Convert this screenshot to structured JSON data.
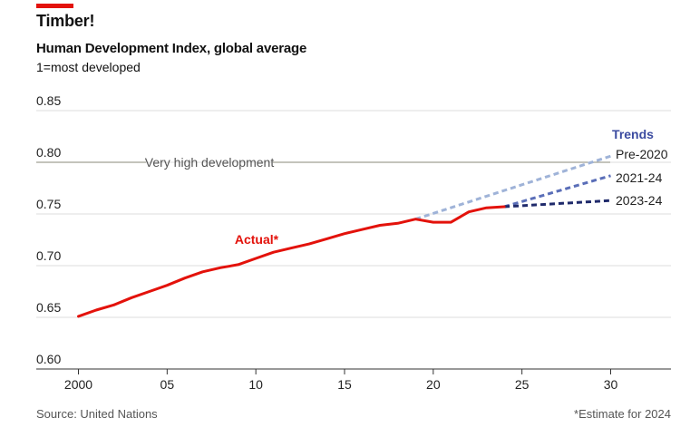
{
  "header": {
    "title": "Timber!",
    "subtitle": "Human Development Index, global average",
    "unit_note": "1=most developed"
  },
  "footer": {
    "source": "Source: United Nations",
    "footnote": "*Estimate for 2024"
  },
  "colors": {
    "brand_red": "#e3120b",
    "actual": "#e3120b",
    "pre2020": "#9fb3d8",
    "trend2021": "#5a6eb8",
    "trend2023": "#1f2a6b",
    "trends_label": "#3b4ba0",
    "reference": "#8a8a7a",
    "grid": "#dcdcdc"
  },
  "chart_data": {
    "type": "line",
    "title": "Human Development Index, global average",
    "xlabel": "",
    "ylabel": "1=most developed",
    "xlim": [
      1999,
      2032
    ],
    "ylim": [
      0.6,
      0.85
    ],
    "y_ticks": [
      0.85,
      0.8,
      0.75,
      0.7,
      0.65,
      0.6
    ],
    "y_tick_labels": [
      "0.85",
      "0.80",
      "0.75",
      "0.70",
      "0.65",
      "0.60"
    ],
    "x_ticks": [
      2000,
      2005,
      2010,
      2015,
      2020,
      2025,
      2030
    ],
    "x_tick_labels": [
      "2000",
      "05",
      "10",
      "15",
      "20",
      "25",
      "30"
    ],
    "grid": true,
    "reference_line": {
      "y": 0.8,
      "label": "Very high development"
    },
    "legend_title": "Trends",
    "series": [
      {
        "name": "Actual*",
        "style": "solid",
        "x": [
          2000,
          2001,
          2002,
          2003,
          2004,
          2005,
          2006,
          2007,
          2008,
          2009,
          2010,
          2011,
          2012,
          2013,
          2014,
          2015,
          2016,
          2017,
          2018,
          2019,
          2020,
          2021,
          2022,
          2023,
          2024
        ],
        "values": [
          0.651,
          0.657,
          0.662,
          0.669,
          0.675,
          0.681,
          0.688,
          0.694,
          0.698,
          0.701,
          0.707,
          0.713,
          0.717,
          0.721,
          0.726,
          0.731,
          0.735,
          0.739,
          0.741,
          0.745,
          0.742,
          0.742,
          0.752,
          0.756,
          0.757
        ]
      },
      {
        "name": "Pre-2020",
        "style": "dashed",
        "x": [
          2019,
          2030
        ],
        "values": [
          0.745,
          0.806
        ]
      },
      {
        "name": "2021-24",
        "style": "dashed",
        "x": [
          2024,
          2030
        ],
        "values": [
          0.757,
          0.787
        ]
      },
      {
        "name": "2023-24",
        "style": "dashed",
        "x": [
          2024,
          2030
        ],
        "values": [
          0.757,
          0.763
        ]
      }
    ]
  }
}
